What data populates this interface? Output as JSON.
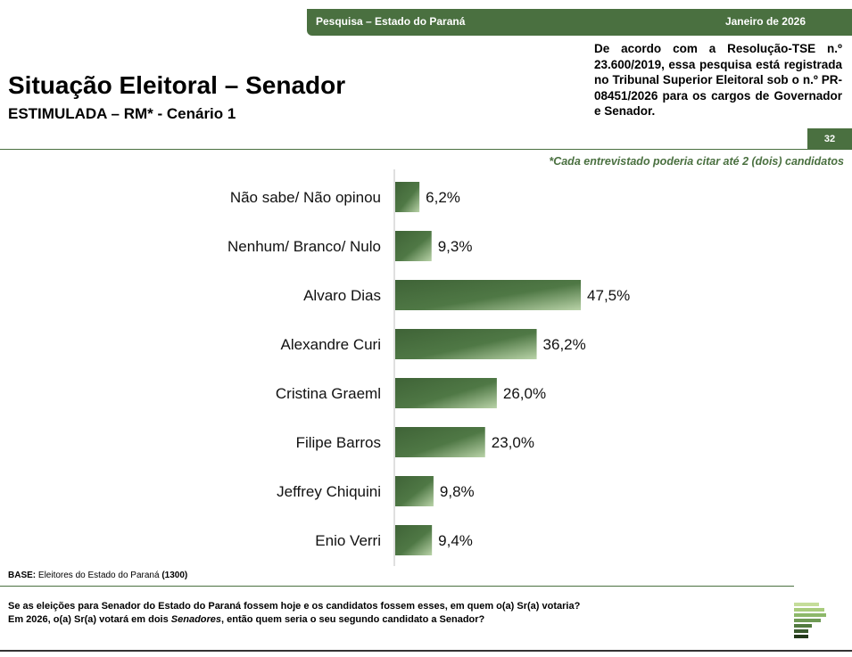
{
  "header": {
    "survey": "Pesquisa – Estado do Paraná",
    "date": "Janeiro de 2026"
  },
  "title": "Situação Eleitoral – Senador",
  "subtitle": "ESTIMULADA – RM* - Cenário 1",
  "registration_note": "De acordo com a Resolução-TSE n.º 23.600/2019, essa pesquisa está registrada no Tribunal Superior Eleitoral sob o n.º PR-08451/2026 para os cargos de Governador e Senador.",
  "page_number": "32",
  "citation_note": "*Cada entrevistado poderia citar até 2 (dois) candidatos",
  "base": {
    "label": "BASE:",
    "text": " Eleitores do Estado do Paraná ",
    "count": "(1300)"
  },
  "question": {
    "line1": "Se as eleições para Senador do Estado do Paraná fossem hoje e os candidatos fossem esses, em quem o(a) Sr(a) votaria?",
    "line2_a": "Em 2026, o(a) Sr(a) votará em dois ",
    "line2_em": "Senadores",
    "line2_b": ", então quem seria o seu segundo candidato a Senador?"
  },
  "colors": {
    "accent": "#4a7040",
    "bar_dark": "#3f6337",
    "bar_light": "#b9d3a8"
  },
  "chart_data": {
    "type": "bar",
    "orientation": "horizontal",
    "categories": [
      "Não sabe/ Não opinou",
      "Nenhum/ Branco/ Nulo",
      "Alvaro Dias",
      "Alexandre Curi",
      "Cristina Graeml",
      "Filipe Barros",
      "Jeffrey Chiquini",
      "Enio Verri"
    ],
    "values": [
      6.2,
      9.3,
      47.5,
      36.2,
      26.0,
      23.0,
      9.8,
      9.4
    ],
    "value_labels": [
      "6,2%",
      "9,3%",
      "47,5%",
      "36,2%",
      "26,0%",
      "23,0%",
      "9,8%",
      "9,4%"
    ],
    "xlim": [
      0,
      100
    ]
  }
}
